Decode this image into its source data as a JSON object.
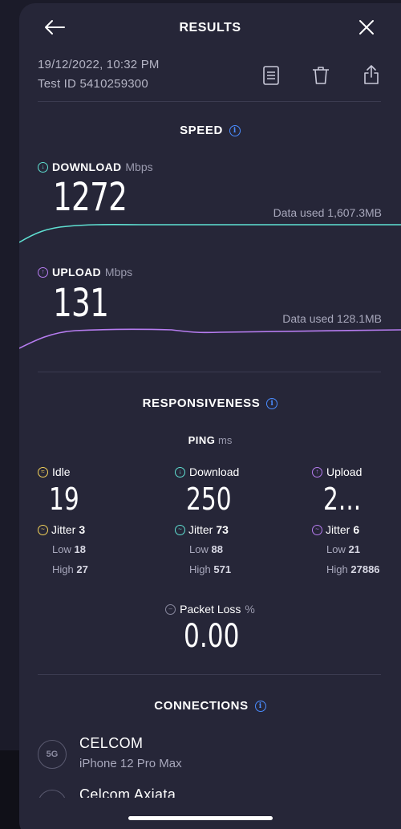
{
  "header": {
    "title": "RESULTS"
  },
  "meta": {
    "datetime": "19/12/2022, 10:32 PM",
    "test_id": "Test ID 5410259300"
  },
  "speed": {
    "section_title": "SPEED",
    "download": {
      "label": "DOWNLOAD",
      "unit": "Mbps",
      "value": "1272",
      "data_used": "Data used 1,607.3MB"
    },
    "upload": {
      "label": "UPLOAD",
      "unit": "Mbps",
      "value": "131",
      "data_used": "Data used 128.1MB"
    }
  },
  "responsiveness": {
    "section_title": "RESPONSIVENESS",
    "ping_label": "PING",
    "ping_unit": "ms",
    "idle": {
      "label": "Idle",
      "value": "19",
      "jitter_label": "Jitter",
      "jitter": "3",
      "low_label": "Low",
      "low": "18",
      "high_label": "High",
      "high": "27"
    },
    "download": {
      "label": "Download",
      "value": "250",
      "jitter_label": "Jitter",
      "jitter": "73",
      "low_label": "Low",
      "low": "88",
      "high_label": "High",
      "high": "571"
    },
    "upload": {
      "label": "Upload",
      "value": "2...",
      "jitter_label": "Jitter",
      "jitter": "6",
      "low_label": "Low",
      "low": "21",
      "high_label": "High",
      "high": "27886"
    },
    "packet_loss": {
      "label": "Packet Loss",
      "unit": "%",
      "value": "0.00"
    }
  },
  "connections": {
    "section_title": "CONNECTIONS",
    "items": [
      {
        "badge": "5G",
        "name": "CELCOM",
        "device": "iPhone 12 Pro Max"
      },
      {
        "badge": "",
        "name": "Celcom Axiata",
        "device": ""
      }
    ]
  },
  "colors": {
    "download": "#5fe0d2",
    "upload": "#b67cf0",
    "idle": "#f2d15a",
    "accent": "#4a8cff"
  }
}
